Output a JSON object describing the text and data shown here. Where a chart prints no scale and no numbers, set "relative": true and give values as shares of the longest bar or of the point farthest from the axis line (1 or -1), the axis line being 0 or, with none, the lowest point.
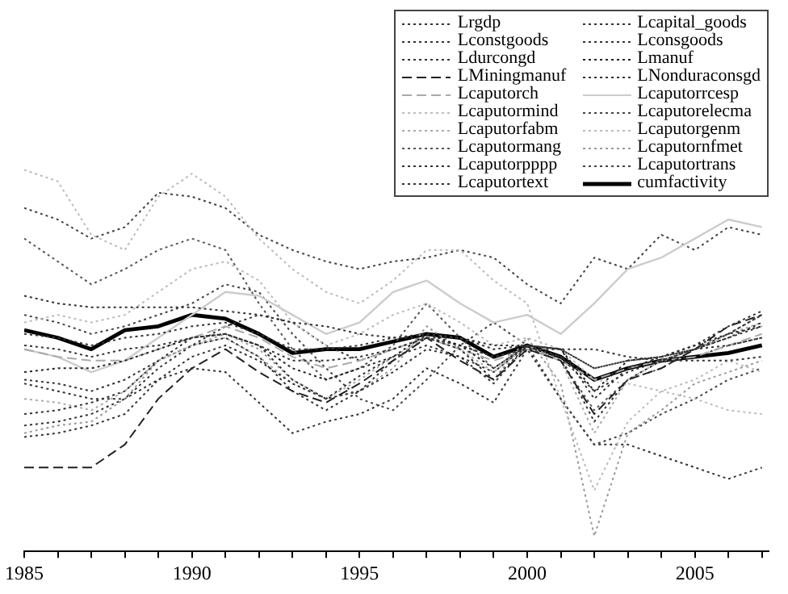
{
  "chart_data": {
    "type": "line",
    "relative": true,
    "legend": "top right",
    "grid": false,
    "x": [
      1985,
      1986,
      1987,
      1988,
      1989,
      1990,
      1991,
      1992,
      1993,
      1994,
      1995,
      1996,
      1997,
      1998,
      1999,
      2000,
      2001,
      2002,
      2003,
      2004,
      2005,
      2006,
      2007
    ],
    "xlim": [
      1985,
      2007.2
    ],
    "xticks": [
      1985,
      {
        "value": 1986,
        "label": null
      },
      {
        "value": 1987,
        "label": null
      },
      {
        "value": 1988,
        "label": null
      },
      {
        "value": 1989,
        "label": null
      },
      1990,
      {
        "value": 1991,
        "label": null
      },
      {
        "value": 1992,
        "label": null
      },
      {
        "value": 1993,
        "label": null
      },
      {
        "value": 1994,
        "label": null
      },
      1995,
      {
        "value": 1996,
        "label": null
      },
      {
        "value": 1997,
        "label": null
      },
      {
        "value": 1998,
        "label": null
      },
      {
        "value": 1999,
        "label": null
      },
      2000,
      {
        "value": 2001,
        "label": null
      },
      {
        "value": 2002,
        "label": null
      },
      {
        "value": 2003,
        "label": null
      },
      {
        "value": 2004,
        "label": null
      },
      2005,
      {
        "value": 2006,
        "label": null
      },
      {
        "value": 2007,
        "label": null
      }
    ],
    "series": [
      {
        "name": "Lrgdp",
        "color": "#333333",
        "line_style": "dotted",
        "values": [
          0.67,
          0.65,
          0.64,
          0.64,
          0.64,
          0.64,
          0.63,
          0.62,
          0.6,
          0.59,
          0.57,
          0.56,
          0.56,
          0.56,
          0.54,
          0.54,
          0.53,
          0.53,
          0.51,
          0.5,
          0.5,
          0.5,
          0.51
        ]
      },
      {
        "name": "Lcapital_goods",
        "color": "#333333",
        "line_style": "dotted",
        "values": [
          0.36,
          0.37,
          0.39,
          0.42,
          0.5,
          0.56,
          0.57,
          0.54,
          0.45,
          0.4,
          0.46,
          0.51,
          0.54,
          0.51,
          0.44,
          0.54,
          0.53,
          0.4,
          0.48,
          0.51,
          0.54,
          0.59,
          0.63
        ]
      },
      {
        "name": "Lconstgoods",
        "color": "#333333",
        "line_style": "dotted",
        "values": [
          0.3,
          0.31,
          0.33,
          0.36,
          0.45,
          0.51,
          0.54,
          0.5,
          0.44,
          0.4,
          0.42,
          0.47,
          0.53,
          0.51,
          0.47,
          0.54,
          0.51,
          0.42,
          0.47,
          0.5,
          0.53,
          0.56,
          0.6
        ]
      },
      {
        "name": "Lconsgoods",
        "color": "#333333",
        "line_style": "dotted",
        "values": [
          0.57,
          0.56,
          0.54,
          0.56,
          0.57,
          0.59,
          0.6,
          0.57,
          0.53,
          0.53,
          0.54,
          0.56,
          0.57,
          0.56,
          0.53,
          0.54,
          0.53,
          0.48,
          0.5,
          0.51,
          0.53,
          0.54,
          0.56
        ]
      },
      {
        "name": "Ldurcongd",
        "color": "#333333",
        "line_style": "dotted",
        "values": [
          0.33,
          0.34,
          0.36,
          0.4,
          0.48,
          0.54,
          0.56,
          0.51,
          0.42,
          0.37,
          0.42,
          0.5,
          0.56,
          0.53,
          0.45,
          0.54,
          0.51,
          0.34,
          0.45,
          0.5,
          0.53,
          0.57,
          0.62
        ]
      },
      {
        "name": "Lmanuf",
        "color": "#222222",
        "line_style": "dotted",
        "values": [
          0.47,
          0.48,
          0.48,
          0.5,
          0.53,
          0.56,
          0.57,
          0.54,
          0.48,
          0.45,
          0.48,
          0.51,
          0.57,
          0.54,
          0.48,
          0.54,
          0.53,
          0.42,
          0.5,
          0.51,
          0.54,
          0.57,
          0.59
        ]
      },
      {
        "name": "LMiningmanuf",
        "color": "#222222",
        "line_style": "dashed",
        "values": [
          0.22,
          0.22,
          0.22,
          0.28,
          0.4,
          0.48,
          0.53,
          0.47,
          0.42,
          0.39,
          0.44,
          0.5,
          0.56,
          0.5,
          0.45,
          0.53,
          0.5,
          0.36,
          0.45,
          0.48,
          0.53,
          0.59,
          0.62
        ]
      },
      {
        "name": "LNonduraconsgd",
        "color": "#333333",
        "line_style": "dotted",
        "values": [
          0.54,
          0.53,
          0.51,
          0.53,
          0.54,
          0.56,
          0.57,
          0.54,
          0.5,
          0.5,
          0.51,
          0.53,
          0.56,
          0.54,
          0.51,
          0.53,
          0.53,
          0.48,
          0.5,
          0.51,
          0.53,
          0.56,
          0.59
        ]
      },
      {
        "name": "Lcaputorch",
        "color": "#aaaaaa",
        "line_style": "dashed",
        "values": [
          0.53,
          0.51,
          0.5,
          0.5,
          0.53,
          0.56,
          0.59,
          0.56,
          0.51,
          0.48,
          0.5,
          0.53,
          0.56,
          0.53,
          0.5,
          0.53,
          0.5,
          0.45,
          0.48,
          0.5,
          0.51,
          0.54,
          0.57
        ]
      },
      {
        "name": "Lcaputorrcesp",
        "color": "#cccccc",
        "line_style": "solid",
        "values": [
          0.53,
          0.51,
          0.47,
          0.5,
          0.56,
          0.62,
          0.68,
          0.67,
          0.62,
          0.57,
          0.6,
          0.68,
          0.71,
          0.65,
          0.6,
          0.62,
          0.57,
          0.65,
          0.74,
          0.77,
          0.82,
          0.87,
          0.85
        ]
      },
      {
        "name": "Lcaputormind",
        "color": "#bbbbbb",
        "line_style": "dotted",
        "values": [
          1,
          0.97,
          0.83,
          0.79,
          0.93,
          0.99,
          0.93,
          0.82,
          0.74,
          0.68,
          0.65,
          0.71,
          0.79,
          0.79,
          0.71,
          0.65,
          0.4,
          0.16,
          0.34,
          0.42,
          0.45,
          0.5,
          0.47
        ]
      },
      {
        "name": "Lcaputorelecma",
        "color": "#444444",
        "line_style": "dotted",
        "values": [
          0.9,
          0.87,
          0.82,
          0.85,
          0.94,
          0.93,
          0.9,
          0.83,
          0.79,
          0.76,
          0.74,
          0.76,
          0.77,
          0.79,
          0.77,
          0.7,
          0.65,
          0.77,
          0.74,
          0.83,
          0.79,
          0.85,
          0.83
        ]
      },
      {
        "name": "Lcaputorfabm",
        "color": "#aaaaaa",
        "line_style": "dotted",
        "values": [
          0.4,
          0.39,
          0.37,
          0.42,
          0.5,
          0.54,
          0.56,
          0.51,
          0.44,
          0.4,
          0.45,
          0.51,
          0.56,
          0.53,
          0.47,
          0.54,
          0.5,
          0.31,
          0.45,
          0.5,
          0.53,
          0.57,
          0.6
        ]
      },
      {
        "name": "Lcaputorgenm",
        "color": "#bbbbbb",
        "line_style": "dotted",
        "values": [
          0.6,
          0.62,
          0.6,
          0.62,
          0.68,
          0.74,
          0.76,
          0.71,
          0.6,
          0.54,
          0.57,
          0.62,
          0.65,
          0.6,
          0.54,
          0.56,
          0.53,
          0.45,
          0.44,
          0.42,
          0.4,
          0.37,
          0.36
        ]
      },
      {
        "name": "Lcaputormang",
        "color": "#555555",
        "line_style": "dotted",
        "values": [
          0.82,
          0.76,
          0.7,
          0.74,
          0.79,
          0.82,
          0.79,
          0.65,
          0.53,
          0.45,
          0.48,
          0.54,
          0.65,
          0.56,
          0.48,
          0.54,
          0.5,
          0.37,
          0.45,
          0.48,
          0.53,
          0.57,
          0.62
        ]
      },
      {
        "name": "Lcaputornfmet",
        "color": "#999999",
        "line_style": "dotted",
        "values": [
          0.31,
          0.33,
          0.34,
          0.4,
          0.5,
          0.54,
          0.57,
          0.53,
          0.45,
          0.4,
          0.42,
          0.48,
          0.59,
          0.53,
          0.45,
          0.56,
          0.44,
          0.04,
          0.31,
          0.37,
          0.44,
          0.47,
          0.5
        ]
      },
      {
        "name": "Lcaputorpppp",
        "color": "#333333",
        "line_style": "dotted",
        "values": [
          0.45,
          0.44,
          0.42,
          0.45,
          0.5,
          0.54,
          0.59,
          0.62,
          0.6,
          0.54,
          0.5,
          0.53,
          0.56,
          0.54,
          0.51,
          0.53,
          0.51,
          0.45,
          0.48,
          0.5,
          0.51,
          0.54,
          0.56
        ]
      },
      {
        "name": "Lcaputortrans",
        "color": "#444444",
        "line_style": "dotted",
        "values": [
          0.62,
          0.6,
          0.57,
          0.59,
          0.62,
          0.65,
          0.7,
          0.68,
          0.57,
          0.48,
          0.4,
          0.37,
          0.45,
          0.54,
          0.6,
          0.54,
          0.4,
          0.28,
          0.31,
          0.36,
          0.4,
          0.45,
          0.48
        ]
      },
      {
        "name": "Lcaputortext",
        "color": "#333333",
        "line_style": "dotted",
        "values": [
          0.44,
          0.42,
          0.4,
          0.4,
          0.45,
          0.48,
          0.47,
          0.39,
          0.31,
          0.34,
          0.36,
          0.4,
          0.48,
          0.44,
          0.39,
          0.53,
          0.4,
          0.28,
          0.28,
          0.25,
          0.22,
          0.19,
          0.22
        ]
      },
      {
        "name": "cumfactivity",
        "color": "#000000",
        "line_style": "solid",
        "values": [
          0.58,
          0.56,
          0.53,
          0.58,
          0.59,
          0.62,
          0.61,
          0.57,
          0.52,
          0.53,
          0.53,
          0.55,
          0.57,
          0.56,
          0.51,
          0.54,
          0.51,
          0.45,
          0.48,
          0.5,
          0.51,
          0.52,
          0.54
        ]
      }
    ]
  }
}
